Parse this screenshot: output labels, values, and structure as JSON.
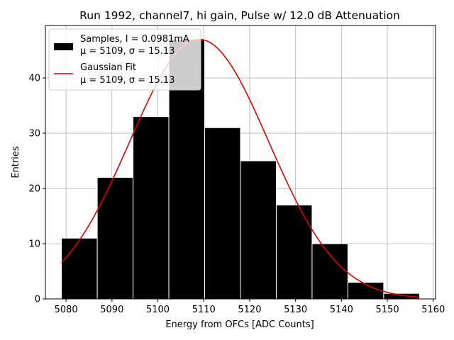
{
  "chart_data": {
    "type": "bar",
    "title": "Run 1992, channel7, hi gain, Pulse w/ 12.0 dB Attenuation",
    "xlabel": "Energy from OFCs [ADC Counts]",
    "ylabel": "Entries",
    "xlim": [
      5075.5,
      5160.5
    ],
    "ylim": [
      0,
      49.5
    ],
    "grid": true,
    "bins": [
      {
        "start": 5079.0,
        "end": 5086.8,
        "count": 11
      },
      {
        "start": 5086.8,
        "end": 5094.6,
        "count": 22
      },
      {
        "start": 5094.6,
        "end": 5102.4,
        "count": 33
      },
      {
        "start": 5102.4,
        "end": 5110.2,
        "count": 47
      },
      {
        "start": 5110.2,
        "end": 5118.0,
        "count": 31
      },
      {
        "start": 5118.0,
        "end": 5125.8,
        "count": 25
      },
      {
        "start": 5125.8,
        "end": 5133.6,
        "count": 17
      },
      {
        "start": 5133.6,
        "end": 5141.4,
        "count": 10
      },
      {
        "start": 5141.4,
        "end": 5149.2,
        "count": 3
      },
      {
        "start": 5149.2,
        "end": 5157.0,
        "count": 1
      }
    ],
    "fit": {
      "type": "gaussian",
      "amplitude": 47.0,
      "mu": 5109,
      "sigma": 15.13,
      "x_range": [
        5079,
        5157
      ],
      "color": "#e00000"
    },
    "x_ticks": [
      5080,
      5090,
      5100,
      5110,
      5120,
      5130,
      5140,
      5150,
      5160
    ],
    "x_tick_labels": [
      "5080",
      "5090",
      "5100",
      "5110",
      "5120",
      "5130",
      "5140",
      "5150",
      "5160"
    ],
    "y_ticks": [
      0,
      10,
      20,
      30,
      40
    ],
    "y_tick_labels": [
      "0",
      "10",
      "20",
      "30",
      "40"
    ],
    "bar_color": "#000000",
    "legend": {
      "location": "top-left",
      "entries": [
        {
          "kind": "patch",
          "line1": "Samples, I = 0.0981mA",
          "line2": "μ = 5109, σ = 15.13"
        },
        {
          "kind": "line",
          "line1": "Gaussian Fit",
          "line2": "μ = 5109, σ = 15.13"
        }
      ]
    }
  }
}
